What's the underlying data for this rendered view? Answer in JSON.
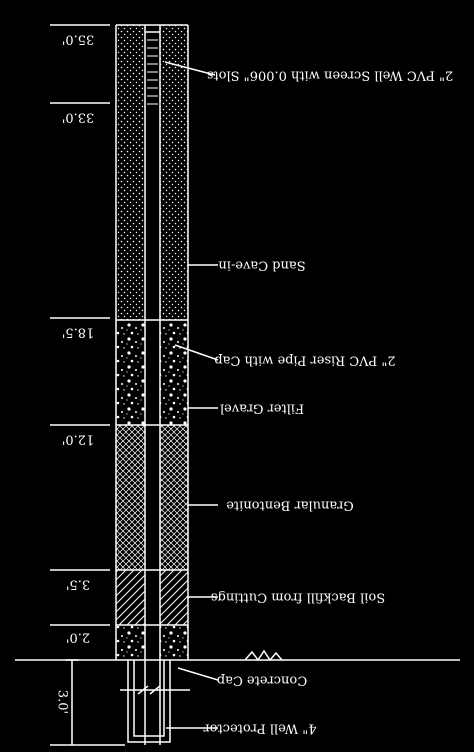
{
  "depth_labels": [
    "35.0'",
    "33.0'",
    "18.5'",
    "12.0'",
    "3.5'",
    "2.0'",
    "3.0'"
  ],
  "callouts": [
    "2\" PVC Well Screen with 0.006\" Slots",
    "Sand Cave-in",
    "2\" PVC Riser Pipe with Cap",
    "Filter Gravel",
    "Granular Bentonite",
    "Soil Backfill from Cuttings",
    "Concrete Cap",
    "4\" Well Protector"
  ]
}
